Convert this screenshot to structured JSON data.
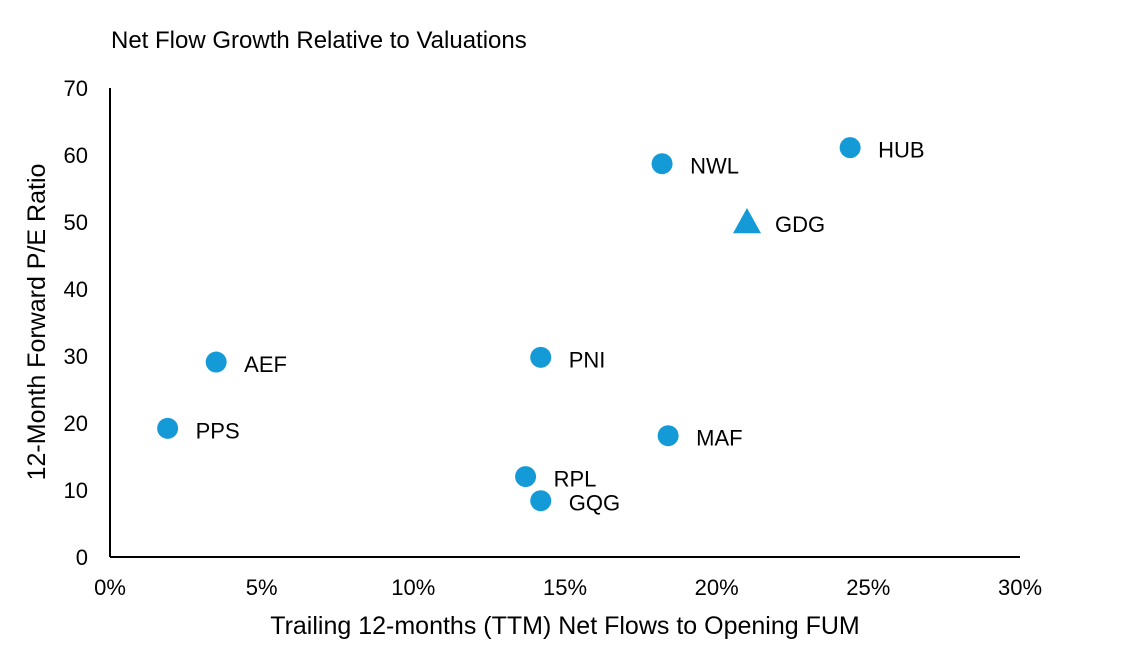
{
  "chart_data": {
    "type": "scatter",
    "title": "Net Flow Growth Relative to Valuations",
    "xlabel": "Trailing 12-months (TTM) Net Flows to Opening FUM",
    "ylabel": "12-Month Forward P/E Ratio",
    "xlim": [
      0,
      30
    ],
    "ylim": [
      0,
      70
    ],
    "xticks": [
      0,
      5,
      10,
      15,
      20,
      25,
      30
    ],
    "xtick_labels": [
      "0%",
      "5%",
      "10%",
      "15%",
      "20%",
      "25%",
      "30%"
    ],
    "yticks": [
      0,
      10,
      20,
      30,
      40,
      50,
      60,
      70
    ],
    "ytick_labels": [
      "0",
      "10",
      "20",
      "30",
      "40",
      "50",
      "60",
      "70"
    ],
    "grid": false,
    "color": "#149BD7",
    "points": [
      {
        "label": "PPS",
        "x": 1.9,
        "y": 19.2,
        "marker": "circle"
      },
      {
        "label": "AEF",
        "x": 3.5,
        "y": 29.1,
        "marker": "circle"
      },
      {
        "label": "RPL",
        "x": 13.7,
        "y": 12.0,
        "marker": "circle"
      },
      {
        "label": "GQG",
        "x": 14.2,
        "y": 8.4,
        "marker": "circle"
      },
      {
        "label": "PNI",
        "x": 14.2,
        "y": 29.8,
        "marker": "circle"
      },
      {
        "label": "NWL",
        "x": 18.2,
        "y": 58.7,
        "marker": "circle"
      },
      {
        "label": "MAF",
        "x": 18.4,
        "y": 18.1,
        "marker": "circle"
      },
      {
        "label": "GDG",
        "x": 21.0,
        "y": 50.0,
        "marker": "triangle"
      },
      {
        "label": "HUB",
        "x": 24.4,
        "y": 61.1,
        "marker": "circle"
      }
    ]
  }
}
